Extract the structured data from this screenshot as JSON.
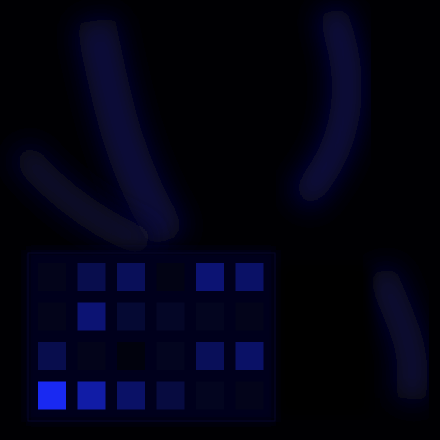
{
  "chart_data": {
    "type": "heatmap",
    "color": "#1a2bff",
    "tick_labels": false,
    "cells": [
      [
        0.1,
        0.3,
        0.35,
        0.08,
        0.45,
        0.4
      ],
      [
        0.1,
        0.45,
        0.2,
        0.15,
        0.12,
        0.1
      ],
      [
        0.3,
        0.1,
        0.05,
        0.12,
        0.35,
        0.4
      ],
      [
        0.95,
        0.65,
        0.4,
        0.25,
        0.12,
        0.1
      ]
    ]
  }
}
